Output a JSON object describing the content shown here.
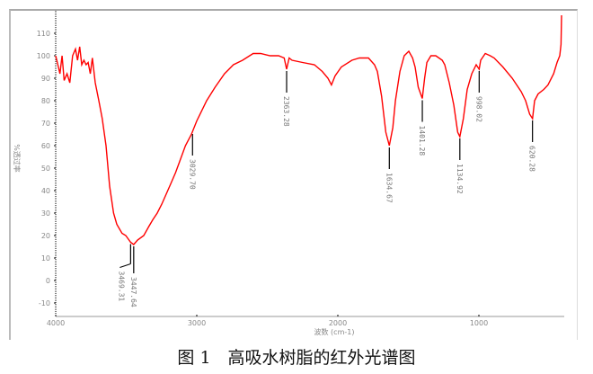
{
  "chart_data": {
    "type": "line",
    "title": "",
    "xlabel": "波数 (cm-1)",
    "ylabel": "%透过率",
    "xlim": [
      4000,
      400
    ],
    "ylim": [
      -16,
      118
    ],
    "x_reversed": true,
    "grid": false,
    "xticks": [
      "4000",
      "3000",
      "2000",
      "1000"
    ],
    "xtick_values": [
      4000,
      3000,
      2000,
      1000
    ],
    "yticks": [
      "110",
      "100",
      "90",
      "80",
      "70",
      "60",
      "50",
      "40",
      "30",
      "20",
      "10",
      "0",
      "-10"
    ],
    "ytick_values": [
      110,
      100,
      90,
      80,
      70,
      60,
      50,
      40,
      30,
      20,
      10,
      0,
      -10
    ],
    "series": [
      {
        "color": "#ff0000",
        "points": [
          [
            4000,
            100
          ],
          [
            3985,
            96
          ],
          [
            3970,
            92
          ],
          [
            3955,
            100
          ],
          [
            3940,
            89
          ],
          [
            3920,
            92
          ],
          [
            3900,
            88
          ],
          [
            3880,
            100
          ],
          [
            3860,
            103
          ],
          [
            3845,
            98
          ],
          [
            3830,
            104
          ],
          [
            3815,
            96
          ],
          [
            3800,
            98
          ],
          [
            3785,
            96
          ],
          [
            3770,
            97
          ],
          [
            3755,
            92
          ],
          [
            3740,
            99
          ],
          [
            3720,
            88
          ],
          [
            3694,
            80
          ],
          [
            3670,
            72
          ],
          [
            3643,
            60
          ],
          [
            3618,
            42
          ],
          [
            3590,
            30
          ],
          [
            3567,
            25
          ],
          [
            3530,
            21
          ],
          [
            3503,
            20
          ],
          [
            3469,
            17
          ],
          [
            3447,
            16
          ],
          [
            3420,
            18
          ],
          [
            3376,
            20
          ],
          [
            3340,
            24
          ],
          [
            3312,
            27
          ],
          [
            3280,
            30
          ],
          [
            3248,
            34
          ],
          [
            3220,
            38
          ],
          [
            3185,
            43
          ],
          [
            3150,
            48
          ],
          [
            3121,
            53
          ],
          [
            3080,
            60
          ],
          [
            3038,
            65
          ],
          [
            3000,
            71
          ],
          [
            2930,
            80
          ],
          [
            2870,
            86
          ],
          [
            2803,
            92
          ],
          [
            2740,
            96
          ],
          [
            2675,
            98
          ],
          [
            2600,
            101
          ],
          [
            2548,
            101
          ],
          [
            2480,
            100
          ],
          [
            2420,
            100
          ],
          [
            2380,
            99
          ],
          [
            2363,
            94
          ],
          [
            2345,
            99
          ],
          [
            2325,
            98
          ],
          [
            2250,
            97
          ],
          [
            2166,
            96
          ],
          [
            2110,
            93
          ],
          [
            2070,
            90
          ],
          [
            2045,
            87
          ],
          [
            2020,
            91
          ],
          [
            1975,
            95
          ],
          [
            1900,
            98
          ],
          [
            1847,
            99
          ],
          [
            1783,
            99
          ],
          [
            1740,
            96
          ],
          [
            1720,
            93
          ],
          [
            1690,
            82
          ],
          [
            1660,
            66
          ],
          [
            1635,
            60
          ],
          [
            1610,
            68
          ],
          [
            1592,
            80
          ],
          [
            1560,
            93
          ],
          [
            1529,
            100
          ],
          [
            1497,
            102
          ],
          [
            1470,
            99
          ],
          [
            1452,
            95
          ],
          [
            1430,
            86
          ],
          [
            1401,
            81
          ],
          [
            1385,
            90
          ],
          [
            1369,
            97
          ],
          [
            1340,
            100
          ],
          [
            1306,
            100
          ],
          [
            1260,
            98
          ],
          [
            1242,
            96
          ],
          [
            1210,
            88
          ],
          [
            1178,
            78
          ],
          [
            1150,
            66
          ],
          [
            1135,
            64
          ],
          [
            1110,
            72
          ],
          [
            1083,
            85
          ],
          [
            1050,
            92
          ],
          [
            1019,
            96
          ],
          [
            998,
            94
          ],
          [
            987,
            98
          ],
          [
            955,
            101
          ],
          [
            920,
            100
          ],
          [
            892,
            99
          ],
          [
            830,
            95
          ],
          [
            764,
            90
          ],
          [
            700,
            84
          ],
          [
            669,
            80
          ],
          [
            640,
            74
          ],
          [
            620,
            72
          ],
          [
            605,
            80
          ],
          [
            580,
            83
          ],
          [
            540,
            85
          ],
          [
            510,
            87
          ],
          [
            470,
            92
          ],
          [
            446,
            97
          ],
          [
            427,
            100
          ],
          [
            418,
            105
          ],
          [
            414,
            118
          ]
        ]
      }
    ],
    "annotations": [
      {
        "label": "3469.31",
        "x": 3469,
        "y": 17
      },
      {
        "label": "3447.64",
        "x": 3447,
        "y": 16
      },
      {
        "label": "3029.70",
        "x": 3030,
        "y": 66
      },
      {
        "label": "2363.28",
        "x": 2363,
        "y": 94
      },
      {
        "label": "1634.67",
        "x": 1635,
        "y": 60
      },
      {
        "label": "1401.28",
        "x": 1401,
        "y": 81
      },
      {
        "label": "1134.92",
        "x": 1135,
        "y": 64
      },
      {
        "label": "998.02",
        "x": 998,
        "y": 94
      },
      {
        "label": "620.28",
        "x": 620,
        "y": 72
      }
    ]
  },
  "caption": "图 1　高吸水树脂的红外光谱图"
}
